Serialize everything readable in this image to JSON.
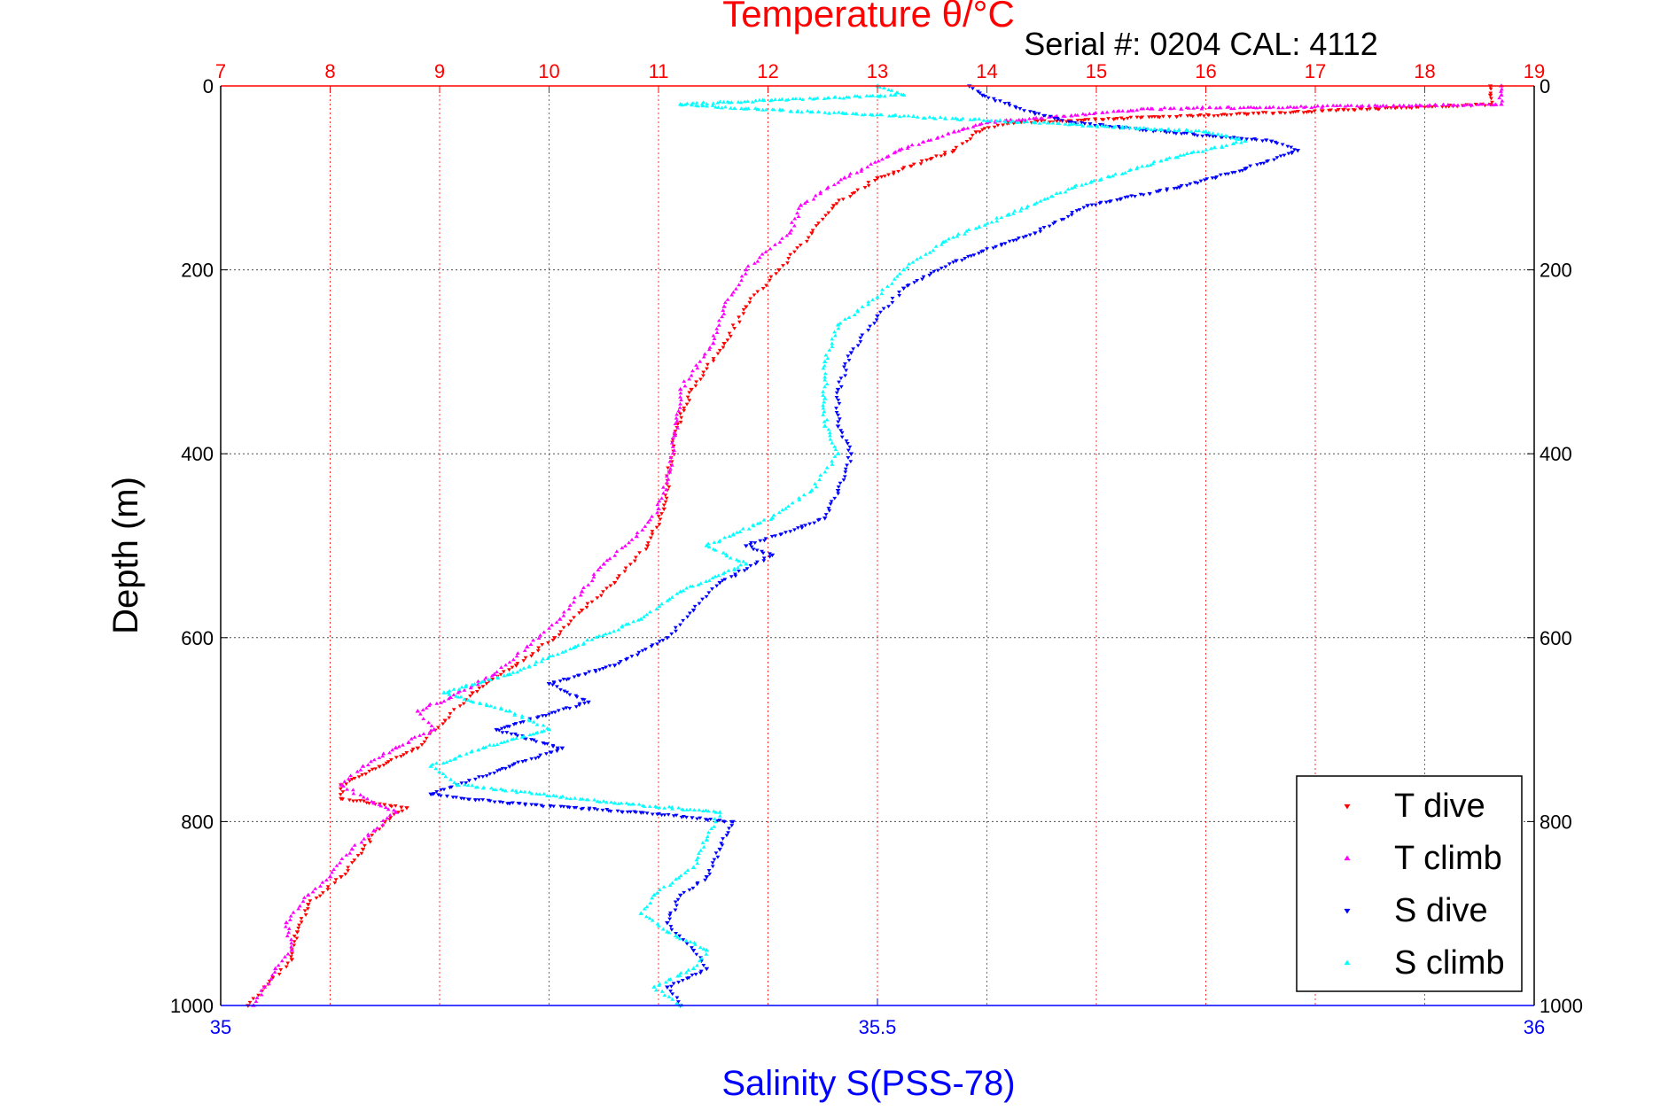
{
  "chart_data": {
    "type": "scatter",
    "title": "Temperature θ/°C",
    "subtitle": "Serial #: 0204  CAL: 4112",
    "xlabel": "Salinity S(PSS-78)",
    "ylabel": "Depth (m)",
    "y_inverted": true,
    "grid": true,
    "legend_position": "bottom-right",
    "axes": {
      "depth": {
        "range": [
          0,
          1000
        ],
        "ticks": [
          0,
          200,
          400,
          600,
          800,
          1000
        ]
      },
      "temperature": {
        "range": [
          7,
          19
        ],
        "ticks": [
          7,
          8,
          9,
          10,
          11,
          12,
          13,
          14,
          15,
          16,
          17,
          18,
          19
        ],
        "color": "#ff0000",
        "position": "top"
      },
      "salinity": {
        "range": [
          35,
          36
        ],
        "ticks": [
          35,
          35.5,
          36
        ],
        "color": "#0000ff",
        "position": "bottom"
      }
    },
    "series": [
      {
        "name": "T dive",
        "axis": "temperature",
        "color": "#ff0000",
        "marker": "triangle-down",
        "points": [
          [
            18.6,
            0
          ],
          [
            18.6,
            10
          ],
          [
            18.6,
            20
          ],
          [
            14.2,
            40
          ],
          [
            13.9,
            50
          ],
          [
            13.7,
            70
          ],
          [
            13.0,
            100
          ],
          [
            12.6,
            130
          ],
          [
            12.4,
            160
          ],
          [
            12.1,
            200
          ],
          [
            11.8,
            240
          ],
          [
            11.6,
            280
          ],
          [
            11.3,
            330
          ],
          [
            11.15,
            380
          ],
          [
            11.1,
            420
          ],
          [
            11.05,
            460
          ],
          [
            10.9,
            500
          ],
          [
            10.6,
            540
          ],
          [
            10.3,
            570
          ],
          [
            10.05,
            600
          ],
          [
            9.7,
            630
          ],
          [
            9.3,
            660
          ],
          [
            9.05,
            690
          ],
          [
            8.8,
            720
          ],
          [
            8.45,
            740
          ],
          [
            8.1,
            760
          ],
          [
            8.1,
            775
          ],
          [
            8.7,
            785
          ],
          [
            8.5,
            800
          ],
          [
            8.3,
            830
          ],
          [
            8.1,
            860
          ],
          [
            7.8,
            890
          ],
          [
            7.7,
            920
          ],
          [
            7.65,
            950
          ],
          [
            7.4,
            980
          ],
          [
            7.25,
            1000
          ]
        ]
      },
      {
        "name": "T climb",
        "axis": "temperature",
        "color": "#ff00ff",
        "marker": "triangle-up",
        "points": [
          [
            18.7,
            0
          ],
          [
            18.7,
            10
          ],
          [
            18.7,
            20
          ],
          [
            15.5,
            25
          ],
          [
            14.0,
            40
          ],
          [
            13.7,
            50
          ],
          [
            13.2,
            70
          ],
          [
            12.7,
            100
          ],
          [
            12.3,
            130
          ],
          [
            12.2,
            160
          ],
          [
            11.8,
            200
          ],
          [
            11.6,
            240
          ],
          [
            11.5,
            280
          ],
          [
            11.2,
            330
          ],
          [
            11.15,
            380
          ],
          [
            11.1,
            420
          ],
          [
            11.0,
            460
          ],
          [
            10.8,
            490
          ],
          [
            10.5,
            520
          ],
          [
            10.3,
            550
          ],
          [
            10.1,
            580
          ],
          [
            9.8,
            610
          ],
          [
            9.5,
            640
          ],
          [
            9.1,
            665
          ],
          [
            8.8,
            680
          ],
          [
            8.95,
            700
          ],
          [
            8.6,
            720
          ],
          [
            8.3,
            740
          ],
          [
            8.1,
            760
          ],
          [
            8.4,
            780
          ],
          [
            8.6,
            790
          ],
          [
            8.4,
            810
          ],
          [
            8.2,
            830
          ],
          [
            8.0,
            860
          ],
          [
            7.8,
            880
          ],
          [
            7.6,
            910
          ],
          [
            7.65,
            940
          ],
          [
            7.5,
            960
          ],
          [
            7.4,
            980
          ],
          [
            7.3,
            1000
          ]
        ]
      },
      {
        "name": "S dive",
        "axis": "salinity",
        "color": "#0000ff",
        "marker": "triangle-down",
        "points": [
          [
            35.57,
            0
          ],
          [
            35.58,
            10
          ],
          [
            35.62,
            30
          ],
          [
            35.65,
            40
          ],
          [
            35.72,
            50
          ],
          [
            35.8,
            60
          ],
          [
            35.82,
            70
          ],
          [
            35.78,
            90
          ],
          [
            35.73,
            110
          ],
          [
            35.66,
            130
          ],
          [
            35.62,
            160
          ],
          [
            35.56,
            190
          ],
          [
            35.52,
            220
          ],
          [
            35.5,
            250
          ],
          [
            35.48,
            290
          ],
          [
            35.47,
            330
          ],
          [
            35.47,
            370
          ],
          [
            35.48,
            400
          ],
          [
            35.47,
            440
          ],
          [
            35.46,
            470
          ],
          [
            35.4,
            500
          ],
          [
            35.42,
            510
          ],
          [
            35.38,
            540
          ],
          [
            35.36,
            570
          ],
          [
            35.34,
            600
          ],
          [
            35.3,
            630
          ],
          [
            35.25,
            650
          ],
          [
            35.28,
            670
          ],
          [
            35.21,
            700
          ],
          [
            35.26,
            720
          ],
          [
            35.22,
            740
          ],
          [
            35.18,
            760
          ],
          [
            35.16,
            770
          ],
          [
            35.22,
            780
          ],
          [
            35.32,
            790
          ],
          [
            35.39,
            800
          ],
          [
            35.38,
            830
          ],
          [
            35.37,
            860
          ],
          [
            35.35,
            880
          ],
          [
            35.34,
            910
          ],
          [
            35.36,
            940
          ],
          [
            35.37,
            960
          ],
          [
            35.34,
            980
          ],
          [
            35.35,
            1000
          ]
        ]
      },
      {
        "name": "S climb",
        "axis": "salinity",
        "color": "#00ffff",
        "marker": "triangle-up",
        "points": [
          [
            35.5,
            0
          ],
          [
            35.52,
            10
          ],
          [
            35.35,
            20
          ],
          [
            35.4,
            25
          ],
          [
            35.62,
            40
          ],
          [
            35.75,
            50
          ],
          [
            35.78,
            60
          ],
          [
            35.72,
            80
          ],
          [
            35.65,
            110
          ],
          [
            35.6,
            140
          ],
          [
            35.55,
            170
          ],
          [
            35.52,
            200
          ],
          [
            35.5,
            230
          ],
          [
            35.47,
            260
          ],
          [
            35.46,
            300
          ],
          [
            35.46,
            340
          ],
          [
            35.46,
            370
          ],
          [
            35.47,
            400
          ],
          [
            35.45,
            440
          ],
          [
            35.42,
            470
          ],
          [
            35.37,
            500
          ],
          [
            35.4,
            520
          ],
          [
            35.35,
            550
          ],
          [
            35.32,
            580
          ],
          [
            35.27,
            610
          ],
          [
            35.22,
            640
          ],
          [
            35.17,
            660
          ],
          [
            35.22,
            680
          ],
          [
            35.25,
            700
          ],
          [
            35.2,
            720
          ],
          [
            35.16,
            740
          ],
          [
            35.18,
            760
          ],
          [
            35.3,
            780
          ],
          [
            35.38,
            790
          ],
          [
            35.37,
            820
          ],
          [
            35.36,
            850
          ],
          [
            35.33,
            880
          ],
          [
            35.32,
            900
          ],
          [
            35.34,
            920
          ],
          [
            35.37,
            940
          ],
          [
            35.36,
            960
          ],
          [
            35.33,
            980
          ],
          [
            35.35,
            1000
          ]
        ]
      }
    ]
  }
}
